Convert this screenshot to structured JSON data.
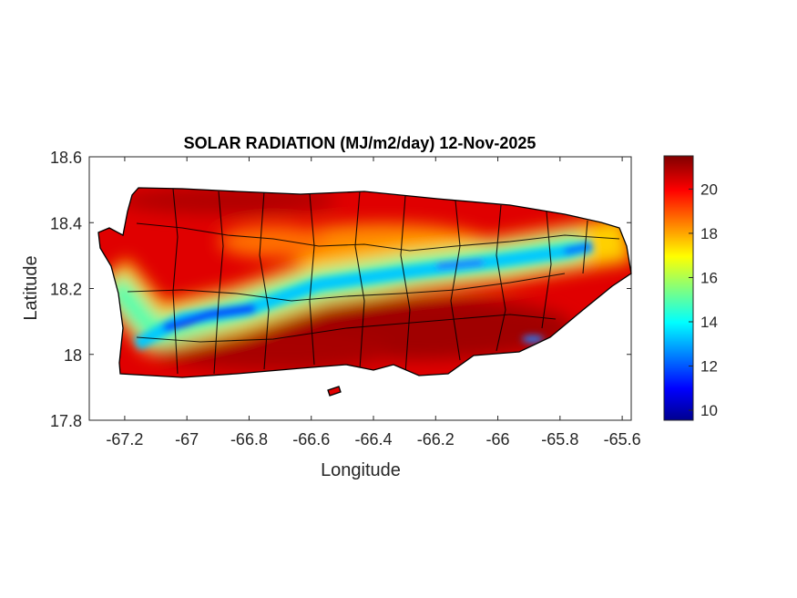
{
  "chart_data": {
    "type": "heatmap",
    "title": "SOLAR RADIATION (MJ/m2/day) 12-Nov-2025",
    "xlabel": "Longitude",
    "ylabel": "Latitude",
    "xlim": [
      -67.314,
      -65.571
    ],
    "ylim": [
      17.8,
      18.6
    ],
    "xticks": [
      -67.2,
      -67,
      -66.8,
      -66.6,
      -66.4,
      -66.2,
      -66,
      -65.8,
      -65.6
    ],
    "xtick_labels": [
      "-67.2",
      "-67",
      "-66.8",
      "-66.6",
      "-66.4",
      "-66.2",
      "-66",
      "-65.8",
      "-65.6"
    ],
    "yticks": [
      17.8,
      18,
      18.2,
      18.4,
      18.6
    ],
    "ytick_labels": [
      "17.8",
      "18",
      "18.2",
      "18.4",
      "18.6"
    ],
    "colormap": "jet",
    "clim": [
      9.55,
      21.5
    ],
    "colorbar_ticks": [
      10,
      12,
      14,
      16,
      18,
      20
    ],
    "colorbar_tick_labels": [
      "10",
      "12",
      "14",
      "16",
      "18",
      "20"
    ],
    "pattern": "High values (20-21.5) across north coast and south; low band (10-15) along diagonal from west-southwest to east-northeast through central mountains"
  }
}
